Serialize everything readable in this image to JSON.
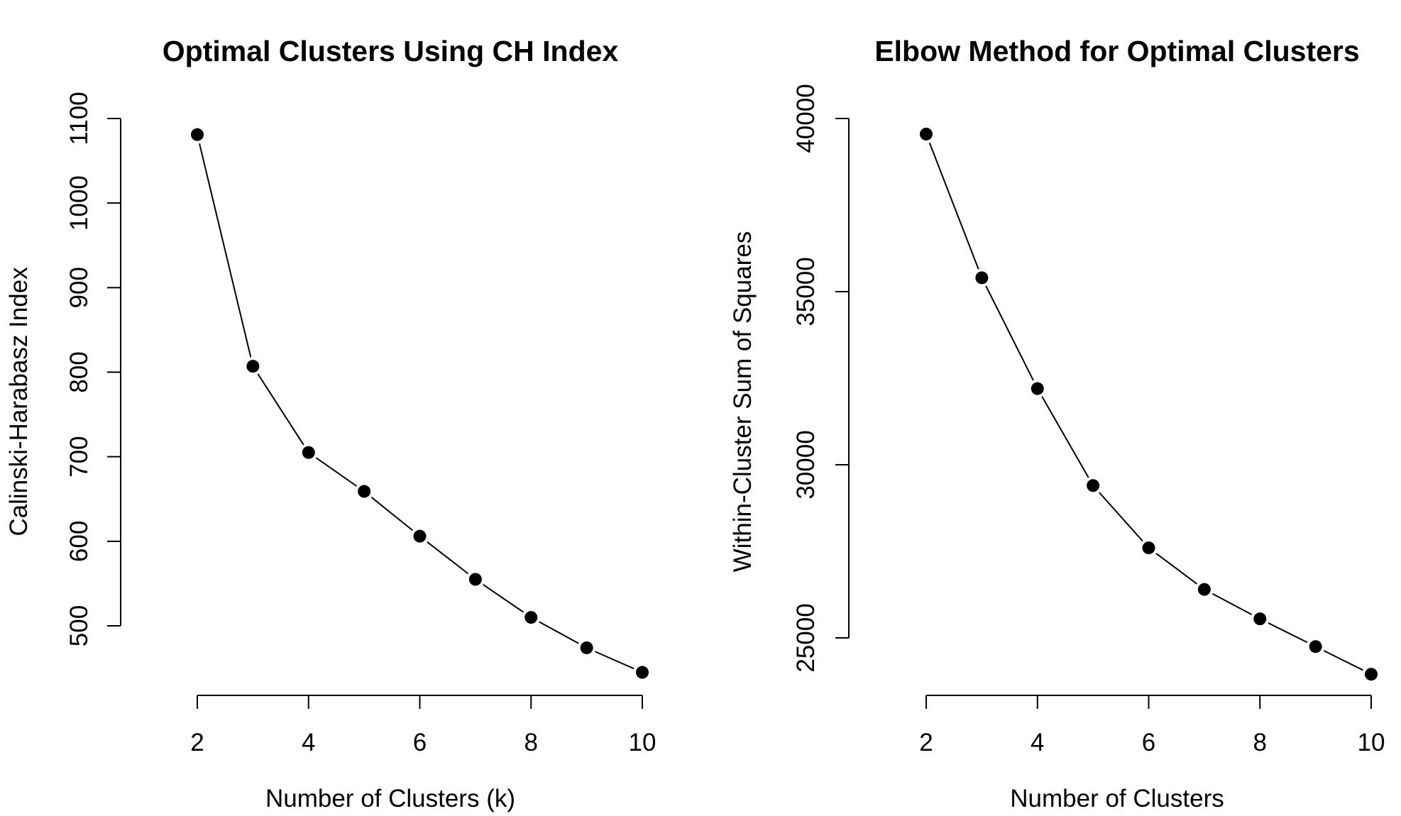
{
  "chart_data": [
    {
      "type": "line",
      "title": "Optimal Clusters Using CH Index",
      "xlabel": "Number of Clusters (k)",
      "ylabel": "Calinski-Harabasz Index",
      "x": [
        2,
        3,
        4,
        5,
        6,
        7,
        8,
        9,
        10
      ],
      "series": [
        {
          "values": [
            1081,
            807,
            705,
            659,
            606,
            555,
            510,
            474,
            445
          ]
        }
      ],
      "xlim": [
        2,
        10
      ],
      "ylim": [
        500,
        1100
      ],
      "xticks": [
        2,
        4,
        6,
        8,
        10
      ],
      "yticks": [
        500,
        600,
        700,
        800,
        900,
        1000,
        1100
      ],
      "grid": false,
      "legend": "none"
    },
    {
      "type": "line",
      "title": "Elbow Method for Optimal Clusters",
      "xlabel": "Number of Clusters",
      "ylabel": "Within-Cluster Sum of Squares",
      "x": [
        2,
        3,
        4,
        5,
        6,
        7,
        8,
        9,
        10
      ],
      "series": [
        {
          "values": [
            39550,
            35400,
            32200,
            29400,
            27600,
            26400,
            25550,
            24750,
            23950
          ]
        }
      ],
      "xlim": [
        2,
        10
      ],
      "ylim": [
        25000,
        40000
      ],
      "xticks": [
        2,
        4,
        6,
        8,
        10
      ],
      "yticks": [
        25000,
        30000,
        35000,
        40000
      ],
      "grid": false,
      "legend": "none"
    }
  ]
}
